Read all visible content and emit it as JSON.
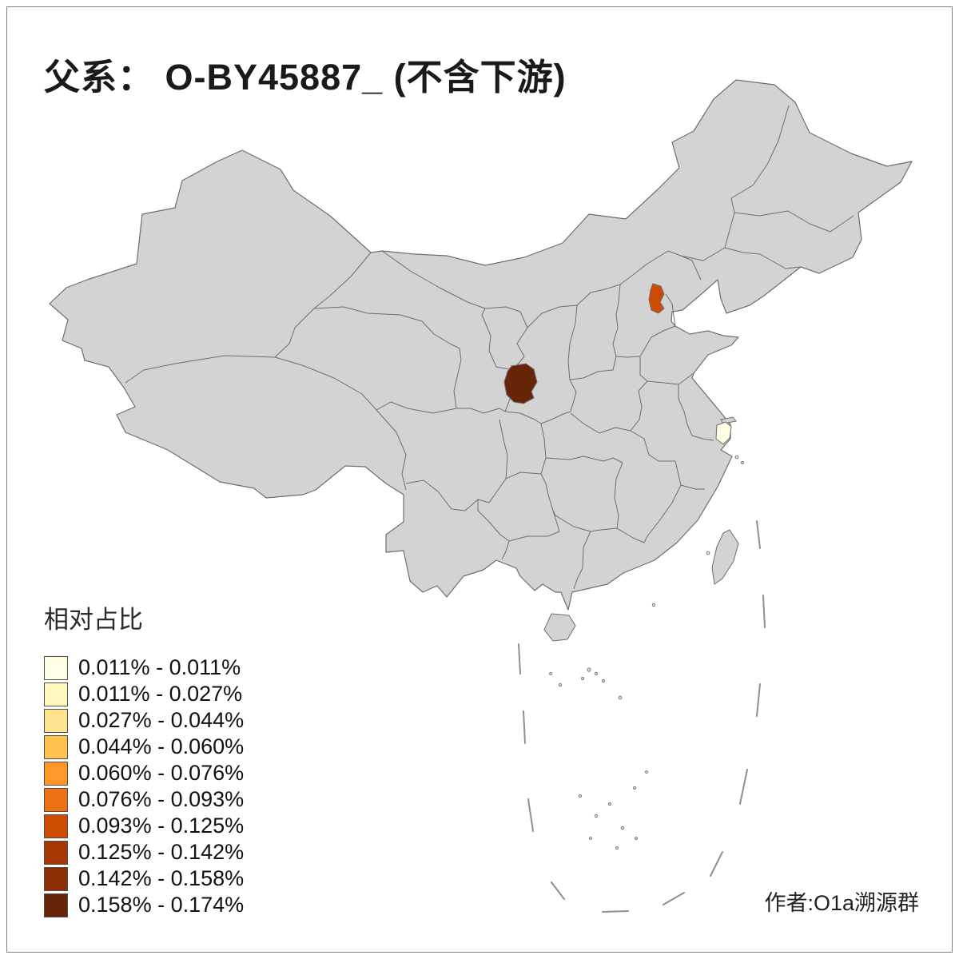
{
  "title": "父系： O-BY45887_ (不含下游)",
  "credit": "作者:O1a溯源群",
  "legend": {
    "title": "相对占比",
    "entries": [
      {
        "label": "0.011% - 0.011%",
        "color": "#FFFFE5"
      },
      {
        "label": "0.011% - 0.027%",
        "color": "#FFF7BC"
      },
      {
        "label": "0.027% - 0.044%",
        "color": "#FEE391"
      },
      {
        "label": "0.044% - 0.060%",
        "color": "#FEC44F"
      },
      {
        "label": "0.060% - 0.076%",
        "color": "#FE9929"
      },
      {
        "label": "0.076% - 0.093%",
        "color": "#EC7014"
      },
      {
        "label": "0.093% - 0.125%",
        "color": "#CC4C02"
      },
      {
        "label": "0.125% - 0.142%",
        "color": "#A63603"
      },
      {
        "label": "0.142% - 0.158%",
        "color": "#8C2D04"
      },
      {
        "label": "0.158% - 0.174%",
        "color": "#662506"
      }
    ]
  },
  "map": {
    "land_color": "#D3D3D3",
    "border_color": "#6E6E6E",
    "sea_dash_color": "#8F8F8F",
    "regions": [
      {
        "name": "central-highlight-region",
        "color": "#662506"
      },
      {
        "name": "beijing-region",
        "color": "#CC4C02"
      },
      {
        "name": "shanghai-region",
        "color": "#FFFFE5"
      }
    ]
  }
}
